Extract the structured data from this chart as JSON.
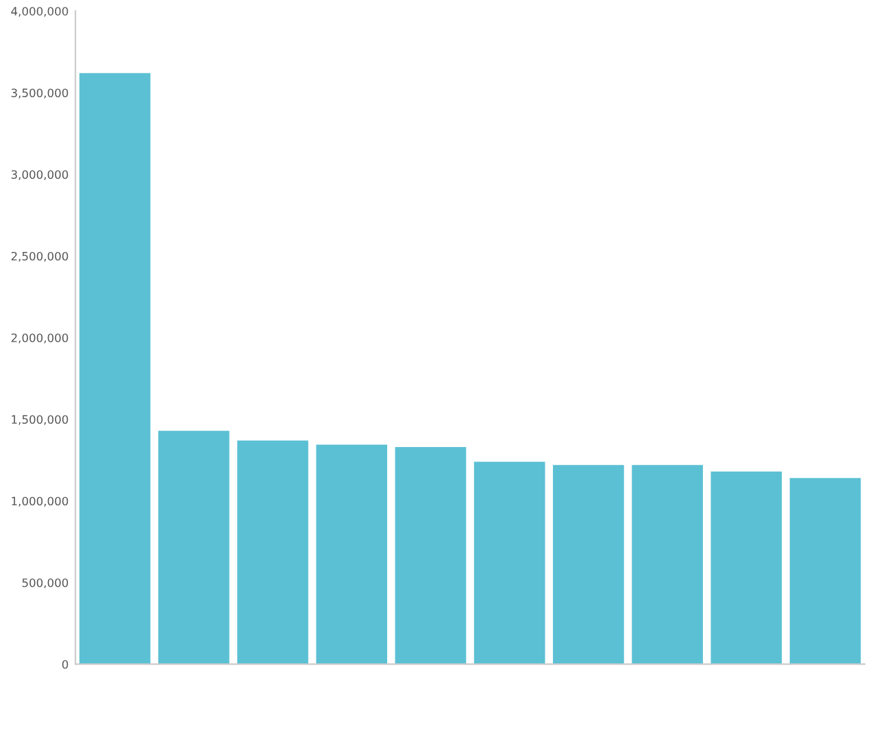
{
  "chart_data": {
    "type": "bar",
    "categories": [
      null,
      null,
      null,
      null,
      null,
      null,
      null,
      null,
      null,
      null
    ],
    "values": [
      3620000,
      1430000,
      1370000,
      1345000,
      1330000,
      1240000,
      1220000,
      1220000,
      1180000,
      1140000
    ],
    "color": "#5bc0d4",
    "ylim": [
      0,
      4000000
    ],
    "yticks": [
      {
        "value": 0,
        "label": "0"
      },
      {
        "value": 500000,
        "label": "500,000"
      },
      {
        "value": 1000000,
        "label": "1,000,000"
      },
      {
        "value": 1500000,
        "label": "1,500,000"
      },
      {
        "value": 2000000,
        "label": "2,000,000"
      },
      {
        "value": 2500000,
        "label": "2,500,000"
      },
      {
        "value": 3000000,
        "label": "3,000,000"
      },
      {
        "value": 3500000,
        "label": "3,500,000"
      },
      {
        "value": 4000000,
        "label": "4,000,000"
      }
    ],
    "grid": false,
    "legend": false
  }
}
